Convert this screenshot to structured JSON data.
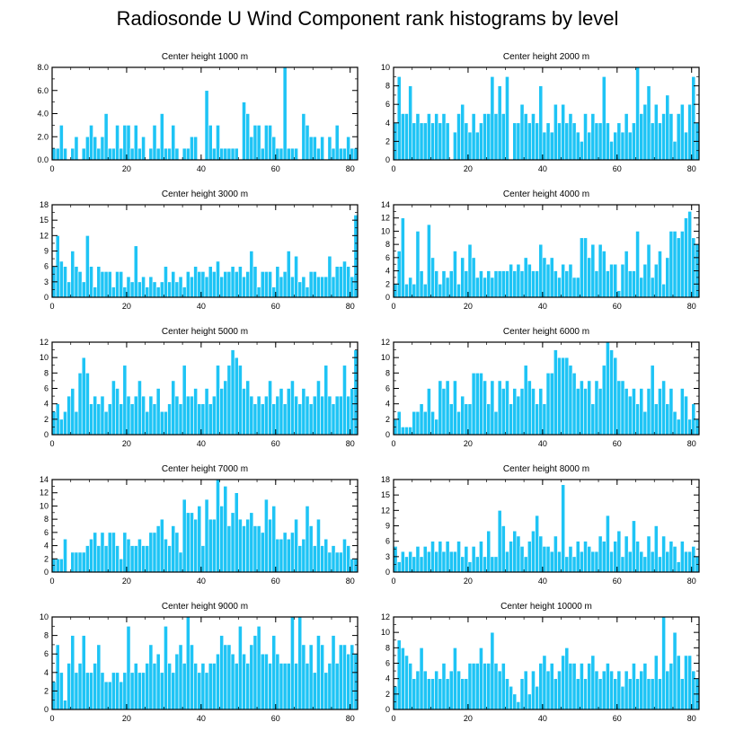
{
  "figure_title": "Radiosonde U Wind Component rank histograms by level",
  "colors": {
    "bar": "#1ec4f5",
    "bar_edge": "#ffffff",
    "axis": "#000000"
  },
  "chart_data": [
    {
      "type": "bar",
      "title": "Center height 1000 m",
      "xlim": [
        0,
        82
      ],
      "ylim": [
        0,
        8
      ],
      "xticks": [
        0,
        20,
        40,
        60,
        80
      ],
      "yticks": [
        "0.0",
        "2.0",
        "4.0",
        "6.0",
        "8.0"
      ],
      "values": [
        1,
        1,
        3,
        1,
        0,
        1,
        2,
        0,
        1,
        2,
        3,
        2,
        1,
        2,
        4,
        1,
        1,
        3,
        1,
        3,
        3,
        1,
        3,
        1,
        2,
        0,
        1,
        3,
        1,
        4,
        1,
        1,
        3,
        1,
        0,
        1,
        1,
        2,
        2,
        0,
        0,
        6,
        3,
        1,
        3,
        1,
        1,
        1,
        1,
        1,
        0,
        5,
        4,
        2,
        3,
        3,
        1,
        3,
        3,
        2,
        1,
        1,
        8,
        1,
        1,
        1,
        0,
        4,
        3,
        2,
        2,
        1,
        2,
        0,
        2,
        1,
        3,
        1,
        1,
        2,
        1,
        1
      ]
    },
    {
      "type": "bar",
      "title": "Center height 2000 m",
      "xlim": [
        0,
        82
      ],
      "ylim": [
        0,
        10
      ],
      "xticks": [
        0,
        20,
        40,
        60,
        80
      ],
      "yticks": [
        "0",
        "2",
        "4",
        "6",
        "8",
        "10"
      ],
      "values": [
        4,
        9,
        5,
        5,
        8,
        4,
        5,
        4,
        4,
        5,
        4,
        5,
        4,
        5,
        4,
        0,
        3,
        5,
        6,
        4,
        3,
        5,
        3,
        4,
        5,
        5,
        9,
        5,
        8,
        5,
        9,
        0,
        4,
        4,
        6,
        5,
        4,
        5,
        4,
        8,
        3,
        4,
        3,
        6,
        4,
        6,
        4,
        5,
        4,
        3,
        2,
        5,
        3,
        5,
        4,
        4,
        9,
        4,
        2,
        3,
        4,
        3,
        5,
        3,
        4,
        10,
        5,
        6,
        8,
        4,
        6,
        4,
        5,
        7,
        5,
        2,
        5,
        6,
        3,
        6,
        9,
        4
      ]
    },
    {
      "type": "bar",
      "title": "Center height 3000 m",
      "xlim": [
        0,
        82
      ],
      "ylim": [
        0,
        18
      ],
      "xticks": [
        0,
        20,
        40,
        60,
        80
      ],
      "yticks": [
        "0",
        "3",
        "6",
        "9",
        "12",
        "15",
        "18"
      ],
      "values": [
        6,
        12,
        7,
        6,
        3,
        9,
        6,
        5,
        3,
        12,
        6,
        2,
        6,
        5,
        5,
        5,
        2,
        5,
        5,
        2,
        4,
        3,
        10,
        3,
        4,
        2,
        4,
        3,
        2,
        3,
        6,
        3,
        5,
        3,
        4,
        2,
        5,
        4,
        6,
        5,
        5,
        4,
        6,
        5,
        7,
        4,
        5,
        5,
        6,
        5,
        6,
        4,
        5,
        9,
        6,
        2,
        5,
        5,
        5,
        2,
        6,
        4,
        5,
        9,
        4,
        8,
        3,
        4,
        2,
        5,
        5,
        4,
        4,
        4,
        8,
        4,
        6,
        6,
        7,
        6,
        4,
        16
      ]
    },
    {
      "type": "bar",
      "title": "Center height 4000 m",
      "xlim": [
        0,
        82
      ],
      "ylim": [
        0,
        14
      ],
      "xticks": [
        0,
        20,
        40,
        60,
        80
      ],
      "yticks": [
        "0",
        "2",
        "4",
        "6",
        "8",
        "10",
        "12",
        "14"
      ],
      "values": [
        2,
        7,
        12,
        2,
        3,
        2,
        10,
        4,
        2,
        11,
        6,
        4,
        2,
        4,
        3,
        4,
        7,
        2,
        6,
        4,
        8,
        6,
        3,
        4,
        3,
        4,
        3,
        4,
        4,
        4,
        4,
        5,
        4,
        5,
        4,
        6,
        5,
        4,
        4,
        8,
        6,
        5,
        6,
        4,
        3,
        5,
        4,
        5,
        3,
        3,
        9,
        9,
        6,
        8,
        4,
        8,
        7,
        4,
        5,
        5,
        1,
        5,
        7,
        4,
        4,
        10,
        3,
        5,
        8,
        3,
        5,
        7,
        2,
        6,
        10,
        10,
        9,
        10,
        12,
        13,
        9,
        8
      ]
    },
    {
      "type": "bar",
      "title": "Center height 5000 m",
      "xlim": [
        0,
        82
      ],
      "ylim": [
        0,
        12
      ],
      "xticks": [
        0,
        20,
        40,
        60,
        80
      ],
      "yticks": [
        "0",
        "2",
        "4",
        "6",
        "8",
        "10",
        "12"
      ],
      "values": [
        3,
        4,
        2,
        3,
        5,
        6,
        3,
        8,
        10,
        8,
        4,
        5,
        4,
        5,
        3,
        4,
        7,
        6,
        4,
        9,
        5,
        4,
        5,
        7,
        5,
        3,
        5,
        4,
        6,
        3,
        3,
        4,
        7,
        5,
        4,
        9,
        5,
        5,
        6,
        4,
        4,
        6,
        4,
        5,
        9,
        6,
        7,
        9,
        11,
        10,
        9,
        6,
        7,
        5,
        4,
        5,
        4,
        5,
        7,
        4,
        5,
        6,
        4,
        6,
        7,
        5,
        4,
        6,
        5,
        4,
        5,
        7,
        5,
        9,
        5,
        4,
        5,
        5,
        9,
        5,
        6,
        11
      ]
    },
    {
      "type": "bar",
      "title": "Center height 6000 m",
      "xlim": [
        0,
        82
      ],
      "ylim": [
        0,
        12
      ],
      "xticks": [
        0,
        20,
        40,
        60,
        80
      ],
      "yticks": [
        "0",
        "2",
        "4",
        "6",
        "8",
        "10",
        "12"
      ],
      "values": [
        2,
        3,
        1,
        1,
        1,
        3,
        3,
        4,
        3,
        6,
        3,
        2,
        7,
        6,
        7,
        4,
        7,
        3,
        5,
        4,
        4,
        8,
        8,
        8,
        7,
        4,
        7,
        3,
        7,
        6,
        7,
        4,
        6,
        5,
        6,
        9,
        7,
        6,
        4,
        6,
        4,
        8,
        8,
        11,
        10,
        10,
        10,
        9,
        8,
        6,
        7,
        6,
        7,
        4,
        7,
        6,
        9,
        12,
        11,
        10,
        7,
        7,
        6,
        5,
        6,
        4,
        6,
        3,
        6,
        9,
        4,
        6,
        7,
        4,
        6,
        3,
        2,
        6,
        5,
        2,
        4,
        2
      ]
    },
    {
      "type": "bar",
      "title": "Center height 7000 m",
      "xlim": [
        0,
        82
      ],
      "ylim": [
        0,
        14
      ],
      "xticks": [
        0,
        20,
        40,
        60,
        80
      ],
      "yticks": [
        "0",
        "2",
        "4",
        "6",
        "8",
        "10",
        "12",
        "14"
      ],
      "values": [
        2,
        2,
        2,
        5,
        0,
        3,
        3,
        3,
        3,
        4,
        5,
        6,
        4,
        6,
        4,
        6,
        6,
        4,
        2,
        6,
        5,
        4,
        4,
        5,
        4,
        4,
        6,
        6,
        7,
        8,
        5,
        4,
        7,
        6,
        3,
        11,
        9,
        9,
        8,
        10,
        4,
        11,
        8,
        8,
        14,
        10,
        13,
        7,
        9,
        12,
        8,
        7,
        8,
        9,
        7,
        7,
        6,
        11,
        8,
        10,
        5,
        5,
        6,
        5,
        6,
        8,
        4,
        5,
        10,
        7,
        4,
        8,
        4,
        5,
        3,
        4,
        3,
        3,
        5,
        4,
        2,
        2
      ]
    },
    {
      "type": "bar",
      "title": "Center height 8000 m",
      "xlim": [
        0,
        82
      ],
      "ylim": [
        0,
        18
      ],
      "xticks": [
        0,
        20,
        40,
        60,
        80
      ],
      "yticks": [
        "0",
        "3",
        "6",
        "9",
        "12",
        "15",
        "18"
      ],
      "values": [
        5,
        2,
        4,
        3,
        4,
        3,
        5,
        3,
        5,
        4,
        6,
        4,
        6,
        4,
        6,
        4,
        4,
        6,
        3,
        5,
        2,
        5,
        3,
        6,
        3,
        8,
        3,
        3,
        12,
        9,
        4,
        6,
        8,
        7,
        5,
        3,
        6,
        8,
        11,
        7,
        5,
        5,
        4,
        7,
        4,
        17,
        3,
        5,
        3,
        6,
        4,
        6,
        5,
        4,
        4,
        7,
        6,
        11,
        4,
        6,
        8,
        3,
        7,
        4,
        10,
        6,
        4,
        3,
        7,
        4,
        9,
        3,
        7,
        4,
        6,
        5,
        2,
        6,
        4,
        4,
        5,
        3
      ]
    },
    {
      "type": "bar",
      "title": "Center height 9000 m",
      "xlim": [
        0,
        82
      ],
      "ylim": [
        0,
        10
      ],
      "xticks": [
        0,
        20,
        40,
        60,
        80
      ],
      "yticks": [
        "0",
        "2",
        "4",
        "6",
        "8",
        "10"
      ],
      "values": [
        3,
        7,
        4,
        1,
        5,
        8,
        4,
        5,
        8,
        4,
        4,
        5,
        7,
        4,
        3,
        3,
        4,
        4,
        3,
        4,
        9,
        4,
        5,
        4,
        4,
        5,
        7,
        5,
        6,
        4,
        9,
        5,
        4,
        6,
        7,
        5,
        10,
        7,
        5,
        4,
        5,
        4,
        5,
        5,
        6,
        8,
        7,
        7,
        6,
        5,
        9,
        6,
        5,
        7,
        8,
        9,
        6,
        6,
        5,
        8,
        6,
        5,
        5,
        5,
        10,
        5,
        10,
        7,
        5,
        7,
        4,
        8,
        7,
        4,
        5,
        8,
        5,
        7,
        7,
        6,
        7,
        6
      ]
    },
    {
      "type": "bar",
      "title": "Center height 10000 m",
      "xlim": [
        0,
        82
      ],
      "ylim": [
        0,
        12
      ],
      "xticks": [
        0,
        20,
        40,
        60,
        80
      ],
      "yticks": [
        "0",
        "2",
        "4",
        "6",
        "8",
        "10",
        "12"
      ],
      "values": [
        3,
        9,
        8,
        7,
        6,
        4,
        5,
        8,
        5,
        4,
        4,
        5,
        4,
        6,
        4,
        5,
        8,
        5,
        4,
        4,
        6,
        6,
        6,
        8,
        6,
        6,
        10,
        6,
        5,
        6,
        4,
        3,
        2,
        1,
        4,
        5,
        2,
        5,
        3,
        6,
        7,
        5,
        6,
        4,
        5,
        7,
        8,
        6,
        6,
        4,
        6,
        4,
        6,
        7,
        5,
        4,
        5,
        6,
        5,
        4,
        5,
        3,
        5,
        4,
        6,
        4,
        5,
        6,
        4,
        4,
        7,
        4,
        12,
        5,
        6,
        10,
        7,
        4,
        7,
        7,
        5,
        4
      ]
    }
  ]
}
